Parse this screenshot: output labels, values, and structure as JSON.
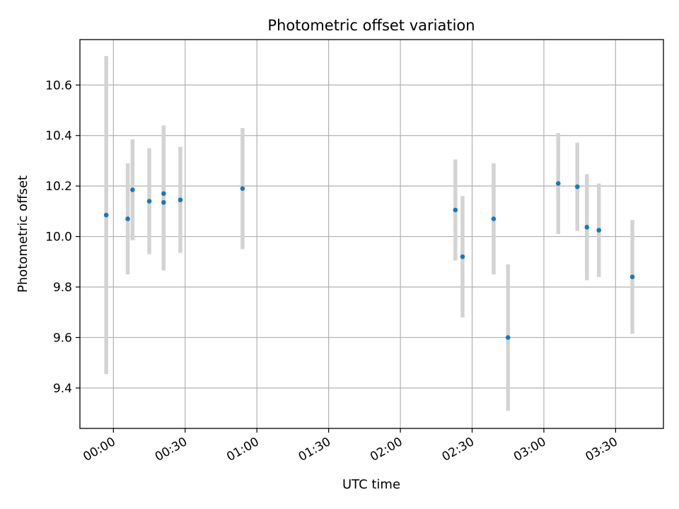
{
  "chart_data": {
    "type": "scatter",
    "title": "Photometric offset variation",
    "xlabel": "UTC time",
    "ylabel": "Photometric offset",
    "x_kind": "time",
    "xlim": [
      "23:46",
      "03:50"
    ],
    "ylim": [
      9.24,
      10.78
    ],
    "x_ticks": [
      "00:00",
      "00:30",
      "01:00",
      "01:30",
      "02:00",
      "02:30",
      "03:00",
      "03:30"
    ],
    "y_ticks": [
      9.4,
      9.6,
      9.8,
      10.0,
      10.2,
      10.4,
      10.6
    ],
    "y_tick_labels": [
      "9.4",
      "9.6",
      "9.8",
      "10.0",
      "10.2",
      "10.4",
      "10.6"
    ],
    "x_tick_rotation_deg": 30,
    "grid": true,
    "marker_color": "#1f77b4",
    "errorbar_color": "#d3d3d3",
    "points": [
      {
        "t": "23:57",
        "y": 10.085,
        "err": 0.63
      },
      {
        "t": "00:06",
        "y": 10.07,
        "err": 0.22
      },
      {
        "t": "00:08",
        "y": 10.185,
        "err": 0.2
      },
      {
        "t": "00:15",
        "y": 10.14,
        "err": 0.21
      },
      {
        "t": "00:21",
        "y": 10.17,
        "err": 0.27
      },
      {
        "t": "00:21",
        "y": 10.135,
        "err": 0.27
      },
      {
        "t": "00:28",
        "y": 10.145,
        "err": 0.21
      },
      {
        "t": "00:54",
        "y": 10.19,
        "err": 0.24
      },
      {
        "t": "02:23",
        "y": 10.105,
        "err": 0.2
      },
      {
        "t": "02:26",
        "y": 9.92,
        "err": 0.24
      },
      {
        "t": "02:39",
        "y": 10.07,
        "err": 0.22
      },
      {
        "t": "02:45",
        "y": 9.6,
        "err": 0.29
      },
      {
        "t": "03:06",
        "y": 10.21,
        "err": 0.2
      },
      {
        "t": "03:14",
        "y": 10.197,
        "err": 0.175
      },
      {
        "t": "03:18",
        "y": 10.037,
        "err": 0.21
      },
      {
        "t": "03:23",
        "y": 10.025,
        "err": 0.185
      },
      {
        "t": "03:37",
        "y": 9.84,
        "err": 0.225
      }
    ]
  }
}
